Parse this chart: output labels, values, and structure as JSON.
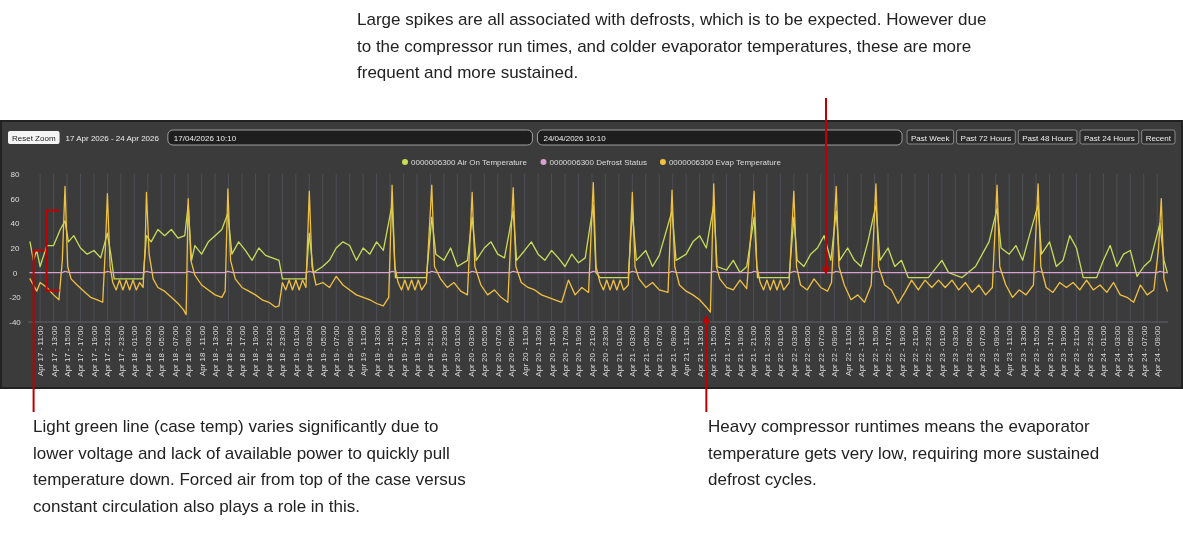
{
  "chart_data": {
    "type": "line",
    "legend": "top",
    "grid": "x",
    "annotations": [
      "Large spikes are all associated with defrosts, which is to be expected. However due to the compressor run times, and colder evaporator temperatures, these are more frequent and more sustained.",
      {
        "text": "Light green line (case temp) varies significantly due to lower voltage and lack of available power to quickly pull temperature down. Forced air from top of the case versus constant circulation also plays a role in this.",
        "x": "2026-04-17T11:40",
        "y": 18
      },
      "Heavy compressor runtimes means the evaporator temperature gets very low, requiring more sustained defrost cycles.",
      "Reset Zoom",
      "17 Apr 2026 - 24 Apr 2026",
      "17/04/2026 10:10",
      "24/04/2026 10:10",
      "Past Week",
      "Past 72 Hours",
      "Past 48 Hours",
      "Past 24 Hours",
      "Recent"
    ],
    "xlim": [
      "2026-04-17T09:12",
      "2026-04-24T10:36"
    ],
    "ylim": [
      -40,
      80
    ],
    "yticks": [
      -40,
      -20,
      0,
      20,
      40,
      60,
      80
    ],
    "xticks": [
      {
        "value": "2026-04-17T11:00",
        "label": "Apr 17 - 11:00"
      },
      {
        "value": "2026-04-17T13:00",
        "label": "Apr 17 - 13:00"
      },
      {
        "value": "2026-04-17T15:00",
        "label": "Apr 17 - 15:00"
      },
      {
        "value": "2026-04-17T17:00",
        "label": "Apr 17 - 17:00"
      },
      {
        "value": "2026-04-17T19:00",
        "label": "Apr 17 - 19:00"
      },
      {
        "value": "2026-04-17T21:00",
        "label": "Apr 17 - 21:00"
      },
      {
        "value": "2026-04-17T23:00",
        "label": "Apr 17 - 23:00"
      },
      {
        "value": "2026-04-18T01:00",
        "label": "Apr 18 - 01:00"
      },
      {
        "value": "2026-04-18T03:00",
        "label": "Apr 18 - 03:00"
      },
      {
        "value": "2026-04-18T05:00",
        "label": "Apr 18 - 05:00"
      },
      {
        "value": "2026-04-18T07:00",
        "label": "Apr 18 - 07:00"
      },
      {
        "value": "2026-04-18T09:00",
        "label": "Apr 18 - 09:00"
      },
      {
        "value": "2026-04-18T11:00",
        "label": "Apr 18 - 11:00"
      },
      {
        "value": "2026-04-18T13:00",
        "label": "Apr 18 - 13:00"
      },
      {
        "value": "2026-04-18T15:00",
        "label": "Apr 18 - 15:00"
      },
      {
        "value": "2026-04-18T17:00",
        "label": "Apr 18 - 17:00"
      },
      {
        "value": "2026-04-18T19:00",
        "label": "Apr 18 - 19:00"
      },
      {
        "value": "2026-04-18T21:00",
        "label": "Apr 18 - 21:00"
      },
      {
        "value": "2026-04-18T23:00",
        "label": "Apr 18 - 23:00"
      },
      {
        "value": "2026-04-19T01:00",
        "label": "Apr 19 - 01:00"
      },
      {
        "value": "2026-04-19T03:00",
        "label": "Apr 19 - 03:00"
      },
      {
        "value": "2026-04-19T05:00",
        "label": "Apr 19 - 05:00"
      },
      {
        "value": "2026-04-19T07:00",
        "label": "Apr 19 - 07:00"
      },
      {
        "value": "2026-04-19T09:00",
        "label": "Apr 19 - 09:00"
      },
      {
        "value": "2026-04-19T11:00",
        "label": "Apr 19 - 11:00"
      },
      {
        "value": "2026-04-19T13:00",
        "label": "Apr 19 - 13:00"
      },
      {
        "value": "2026-04-19T15:00",
        "label": "Apr 19 - 15:00"
      },
      {
        "value": "2026-04-19T17:00",
        "label": "Apr 19 - 17:00"
      },
      {
        "value": "2026-04-19T19:00",
        "label": "Apr 19 - 19:00"
      },
      {
        "value": "2026-04-19T21:00",
        "label": "Apr 19 - 21:00"
      },
      {
        "value": "2026-04-19T23:00",
        "label": "Apr 19 - 23:00"
      },
      {
        "value": "2026-04-20T01:00",
        "label": "Apr 20 - 01:00"
      },
      {
        "value": "2026-04-20T03:00",
        "label": "Apr 20 - 03:00"
      },
      {
        "value": "2026-04-20T05:00",
        "label": "Apr 20 - 05:00"
      },
      {
        "value": "2026-04-20T07:00",
        "label": "Apr 20 - 07:00"
      },
      {
        "value": "2026-04-20T09:00",
        "label": "Apr 20 - 09:00"
      },
      {
        "value": "2026-04-20T11:00",
        "label": "Apr 20 - 11:00"
      },
      {
        "value": "2026-04-20T13:00",
        "label": "Apr 20 - 13:00"
      },
      {
        "value": "2026-04-20T15:00",
        "label": "Apr 20 - 15:00"
      },
      {
        "value": "2026-04-20T17:00",
        "label": "Apr 20 - 17:00"
      },
      {
        "value": "2026-04-20T19:00",
        "label": "Apr 20 - 19:00"
      },
      {
        "value": "2026-04-20T21:00",
        "label": "Apr 20 - 21:00"
      },
      {
        "value": "2026-04-20T23:00",
        "label": "Apr 20 - 23:00"
      },
      {
        "value": "2026-04-21T01:00",
        "label": "Apr 21 - 01:00"
      },
      {
        "value": "2026-04-21T03:00",
        "label": "Apr 21 - 03:00"
      },
      {
        "value": "2026-04-21T05:00",
        "label": "Apr 21 - 05:00"
      },
      {
        "value": "2026-04-21T07:00",
        "label": "Apr 21 - 07:00"
      },
      {
        "value": "2026-04-21T09:00",
        "label": "Apr 21 - 09:00"
      },
      {
        "value": "2026-04-21T11:00",
        "label": "Apr 21 - 11:00"
      },
      {
        "value": "2026-04-21T13:00",
        "label": "Apr 21 - 13:00"
      },
      {
        "value": "2026-04-21T15:00",
        "label": "Apr 21 - 15:00"
      },
      {
        "value": "2026-04-21T17:00",
        "label": "Apr 21 - 17:00"
      },
      {
        "value": "2026-04-21T19:00",
        "label": "Apr 21 - 19:00"
      },
      {
        "value": "2026-04-21T21:00",
        "label": "Apr 21 - 21:00"
      },
      {
        "value": "2026-04-21T23:00",
        "label": "Apr 21 - 23:00"
      },
      {
        "value": "2026-04-22T01:00",
        "label": "Apr 22 - 01:00"
      },
      {
        "value": "2026-04-22T03:00",
        "label": "Apr 22 - 03:00"
      },
      {
        "value": "2026-04-22T05:00",
        "label": "Apr 22 - 05:00"
      },
      {
        "value": "2026-04-22T07:00",
        "label": "Apr 22 - 07:00"
      },
      {
        "value": "2026-04-22T09:00",
        "label": "Apr 22 - 09:00"
      },
      {
        "value": "2026-04-22T11:00",
        "label": "Apr 22 - 11:00"
      },
      {
        "value": "2026-04-22T13:00",
        "label": "Apr 22 - 13:00"
      },
      {
        "value": "2026-04-22T15:00",
        "label": "Apr 22 - 15:00"
      },
      {
        "value": "2026-04-22T17:00",
        "label": "Apr 22 - 17:00"
      },
      {
        "value": "2026-04-22T19:00",
        "label": "Apr 22 - 19:00"
      },
      {
        "value": "2026-04-22T21:00",
        "label": "Apr 22 - 21:00"
      },
      {
        "value": "2026-04-22T23:00",
        "label": "Apr 22 - 23:00"
      },
      {
        "value": "2026-04-23T01:00",
        "label": "Apr 23 - 01:00"
      },
      {
        "value": "2026-04-23T03:00",
        "label": "Apr 23 - 03:00"
      },
      {
        "value": "2026-04-23T05:00",
        "label": "Apr 23 - 05:00"
      },
      {
        "value": "2026-04-23T07:00",
        "label": "Apr 23 - 07:00"
      },
      {
        "value": "2026-04-23T09:00",
        "label": "Apr 23 - 09:00"
      },
      {
        "value": "2026-04-23T11:00",
        "label": "Apr 23 - 11:00"
      },
      {
        "value": "2026-04-23T13:00",
        "label": "Apr 23 - 13:00"
      },
      {
        "value": "2026-04-23T15:00",
        "label": "Apr 23 - 15:00"
      },
      {
        "value": "2026-04-23T17:00",
        "label": "Apr 23 - 17:00"
      },
      {
        "value": "2026-04-23T19:00",
        "label": "Apr 23 - 19:00"
      },
      {
        "value": "2026-04-23T21:00",
        "label": "Apr 23 - 21:00"
      },
      {
        "value": "2026-04-23T23:00",
        "label": "Apr 23 - 23:00"
      },
      {
        "value": "2026-04-24T01:00",
        "label": "Apr 24 - 01:00"
      },
      {
        "value": "2026-04-24T03:00",
        "label": "Apr 24 - 03:00"
      },
      {
        "value": "2026-04-24T05:00",
        "label": "Apr 24 - 05:00"
      },
      {
        "value": "2026-04-24T07:00",
        "label": "Apr 24 - 07:00"
      },
      {
        "value": "2026-04-24T09:00",
        "label": "Apr 24 - 09:00"
      }
    ],
    "series": [
      {
        "name": "0000006300 Air On Temperature",
        "color": "#c8dc5a",
        "x": [
          "2026-04-17T09:30",
          "2026-04-17T10:00",
          "2026-04-17T10:30",
          "2026-04-17T11:00",
          "2026-04-17T12:00",
          "2026-04-17T13:00",
          "2026-04-17T14:00",
          "2026-04-17T14:42",
          "2026-04-17T15:12",
          "2026-04-17T16:00",
          "2026-04-17T17:00",
          "2026-04-17T18:00",
          "2026-04-17T19:00",
          "2026-04-17T20:00",
          "2026-04-17T21:00",
          "2026-04-17T21:30",
          "2026-04-17T22:00",
          "2026-04-18T02:18",
          "2026-04-18T02:48",
          "2026-04-18T03:30",
          "2026-04-18T04:30",
          "2026-04-18T05:30",
          "2026-04-18T06:30",
          "2026-04-18T07:30",
          "2026-04-18T08:30",
          "2026-04-18T09:00",
          "2026-04-18T09:30",
          "2026-04-18T10:00",
          "2026-04-18T11:00",
          "2026-04-18T12:00",
          "2026-04-18T13:00",
          "2026-04-18T14:00",
          "2026-04-18T14:54",
          "2026-04-18T15:30",
          "2026-04-18T16:30",
          "2026-04-18T17:30",
          "2026-04-18T18:30",
          "2026-04-18T19:30",
          "2026-04-18T20:30",
          "2026-04-18T21:30",
          "2026-04-18T22:30",
          "2026-04-18T23:00",
          "2026-04-19T02:30",
          "2026-04-19T03:00",
          "2026-04-19T03:36",
          "2026-04-19T05:00",
          "2026-04-19T06:00",
          "2026-04-19T07:00",
          "2026-04-19T08:00",
          "2026-04-19T09:00",
          "2026-04-19T10:00",
          "2026-04-19T11:00",
          "2026-04-19T12:00",
          "2026-04-19T13:00",
          "2026-04-19T14:00",
          "2026-04-19T15:18",
          "2026-04-19T15:48",
          "2026-04-19T20:24",
          "2026-04-19T21:12",
          "2026-04-19T21:48",
          "2026-04-19T23:00",
          "2026-04-20T00:00",
          "2026-04-20T01:00",
          "2026-04-20T02:30",
          "2026-04-20T03:12",
          "2026-04-20T03:48",
          "2026-04-20T05:00",
          "2026-04-20T06:00",
          "2026-04-20T07:00",
          "2026-04-20T08:00",
          "2026-04-20T09:18",
          "2026-04-20T09:48",
          "2026-04-20T11:00",
          "2026-04-20T12:00",
          "2026-04-20T13:00",
          "2026-04-20T14:00",
          "2026-04-20T15:00",
          "2026-04-20T16:00",
          "2026-04-20T17:00",
          "2026-04-20T18:00",
          "2026-04-20T19:00",
          "2026-04-20T20:00",
          "2026-04-20T21:12",
          "2026-04-20T21:36",
          "2026-04-20T22:12",
          "2026-04-21T02:24",
          "2026-04-21T03:00",
          "2026-04-21T03:36",
          "2026-04-21T05:00",
          "2026-04-21T06:00",
          "2026-04-21T07:00",
          "2026-04-21T08:54",
          "2026-04-21T09:30",
          "2026-04-21T11:00",
          "2026-04-21T12:00",
          "2026-04-21T13:00",
          "2026-04-21T14:00",
          "2026-04-21T15:06",
          "2026-04-21T15:36",
          "2026-04-21T17:00",
          "2026-04-21T18:00",
          "2026-04-21T19:00",
          "2026-04-21T20:00",
          "2026-04-21T21:06",
          "2026-04-21T21:36",
          "2026-04-22T02:18",
          "2026-04-22T03:00",
          "2026-04-22T03:30",
          "2026-04-22T04:30",
          "2026-04-22T05:30",
          "2026-04-22T06:30",
          "2026-04-22T07:30",
          "2026-04-22T08:30",
          "2026-04-22T09:18",
          "2026-04-22T09:48",
          "2026-04-22T11:00",
          "2026-04-22T12:00",
          "2026-04-22T13:00",
          "2026-04-22T14:00",
          "2026-04-22T15:12",
          "2026-04-22T15:48",
          "2026-04-22T17:00",
          "2026-04-22T18:00",
          "2026-04-22T19:00",
          "2026-04-22T20:00",
          "2026-04-22T21:00",
          "2026-04-22T23:00",
          "2026-04-23T01:00",
          "2026-04-23T02:00",
          "2026-04-23T04:00",
          "2026-04-23T06:00",
          "2026-04-23T08:00",
          "2026-04-23T09:12",
          "2026-04-23T09:48",
          "2026-04-23T11:00",
          "2026-04-23T12:00",
          "2026-04-23T13:00",
          "2026-04-23T14:00",
          "2026-04-23T15:18",
          "2026-04-23T15:48",
          "2026-04-23T17:00",
          "2026-04-23T18:00",
          "2026-04-23T19:00",
          "2026-04-23T20:00",
          "2026-04-23T21:00",
          "2026-04-23T22:00",
          "2026-04-24T00:00",
          "2026-04-24T01:00",
          "2026-04-24T02:00",
          "2026-04-24T03:00",
          "2026-04-24T04:00",
          "2026-04-24T05:00",
          "2026-04-24T06:00",
          "2026-04-24T07:00",
          "2026-04-24T08:00",
          "2026-04-24T09:24",
          "2026-04-24T10:00",
          "2026-04-24T10:30"
        ],
        "values": [
          25,
          10,
          18,
          5,
          22,
          22,
          35,
          42,
          25,
          30,
          20,
          15,
          18,
          12,
          32,
          15,
          -5,
          -5,
          30,
          25,
          35,
          30,
          35,
          28,
          30,
          55,
          10,
          22,
          15,
          25,
          30,
          35,
          48,
          15,
          25,
          18,
          10,
          20,
          14,
          12,
          10,
          -5,
          -5,
          32,
          0,
          5,
          10,
          20,
          25,
          22,
          10,
          20,
          15,
          25,
          18,
          55,
          -4,
          -4,
          45,
          15,
          10,
          20,
          5,
          10,
          45,
          10,
          20,
          25,
          15,
          12,
          50,
          10,
          18,
          25,
          15,
          10,
          18,
          12,
          5,
          15,
          8,
          12,
          55,
          0,
          -4,
          -4,
          50,
          10,
          18,
          5,
          14,
          50,
          10,
          15,
          25,
          30,
          20,
          55,
          5,
          2,
          10,
          0,
          5,
          45,
          -4,
          -4,
          45,
          10,
          5,
          15,
          20,
          30,
          10,
          50,
          10,
          20,
          10,
          5,
          25,
          55,
          10,
          20,
          5,
          10,
          -4,
          -4,
          -4,
          10,
          0,
          -4,
          5,
          25,
          52,
          20,
          15,
          22,
          10,
          30,
          55,
          15,
          25,
          5,
          10,
          30,
          20,
          -4,
          -4,
          10,
          22,
          5,
          15,
          18,
          -3,
          5,
          10,
          40,
          10,
          0
        ]
      },
      {
        "name": "0000006300 Defrost Status",
        "color": "#d8a0d0",
        "x": [
          "2026-04-17T09:30",
          "2026-04-17T14:18",
          "2026-04-17T14:42",
          "2026-04-17T15:24",
          "2026-04-17T20:36",
          "2026-04-17T21:00",
          "2026-04-17T21:42",
          "2026-04-18T02:24",
          "2026-04-18T02:48",
          "2026-04-18T03:30",
          "2026-04-18T08:36",
          "2026-04-18T09:00",
          "2026-04-18T09:42",
          "2026-04-18T14:30",
          "2026-04-18T14:54",
          "2026-04-18T15:36",
          "2026-04-19T02:36",
          "2026-04-19T03:00",
          "2026-04-19T03:42",
          "2026-04-19T14:54",
          "2026-04-19T15:18",
          "2026-04-19T16:00",
          "2026-04-19T20:48",
          "2026-04-19T21:12",
          "2026-04-19T21:54",
          "2026-04-20T02:48",
          "2026-04-20T03:12",
          "2026-04-20T03:54",
          "2026-04-20T08:54",
          "2026-04-20T09:18",
          "2026-04-20T10:00",
          "2026-04-20T20:48",
          "2026-04-20T21:12",
          "2026-04-20T21:54",
          "2026-04-21T02:36",
          "2026-04-21T03:00",
          "2026-04-21T03:42",
          "2026-04-21T08:30",
          "2026-04-21T08:54",
          "2026-04-21T09:36",
          "2026-04-21T14:42",
          "2026-04-21T15:06",
          "2026-04-21T15:48",
          "2026-04-21T20:42",
          "2026-04-21T21:06",
          "2026-04-21T21:48",
          "2026-04-22T02:36",
          "2026-04-22T03:00",
          "2026-04-22T03:42",
          "2026-04-22T08:54",
          "2026-04-22T09:18",
          "2026-04-22T10:00",
          "2026-04-22T14:48",
          "2026-04-22T15:12",
          "2026-04-22T15:54",
          "2026-04-23T08:48",
          "2026-04-23T09:12",
          "2026-04-23T09:54",
          "2026-04-23T14:54",
          "2026-04-23T15:18",
          "2026-04-23T16:00",
          "2026-04-24T09:00",
          "2026-04-24T09:24",
          "2026-04-24T10:06",
          "2026-04-24T10:30"
        ],
        "values": [
          0,
          0,
          1,
          0,
          0,
          1,
          0,
          0,
          1,
          0,
          0,
          1,
          0,
          0,
          1,
          0,
          0,
          1,
          0,
          0,
          1,
          0,
          0,
          1,
          0,
          0,
          1,
          0,
          0,
          1,
          0,
          0,
          1,
          0,
          0,
          1,
          0,
          0,
          1,
          0,
          0,
          1,
          0,
          0,
          1,
          0,
          0,
          1,
          0,
          0,
          1,
          0,
          0,
          1,
          0,
          0,
          1,
          0,
          0,
          1,
          0,
          0,
          1,
          0,
          0
        ]
      },
      {
        "name": "0000006300 Evap Temperature",
        "color": "#f0c040",
        "x": [
          "2026-04-17T09:30",
          "2026-04-17T10:00",
          "2026-04-17T10:30",
          "2026-04-17T11:00",
          "2026-04-17T12:00",
          "2026-04-17T13:00",
          "2026-04-17T13:48",
          "2026-04-17T14:18",
          "2026-04-17T14:42",
          "2026-04-17T15:06",
          "2026-04-17T15:36",
          "2026-04-17T16:30",
          "2026-04-17T17:30",
          "2026-04-17T18:30",
          "2026-04-17T19:30",
          "2026-04-17T20:18",
          "2026-04-17T20:42",
          "2026-04-17T21:00",
          "2026-04-17T21:24",
          "2026-04-17T21:48",
          "2026-04-17T22:18",
          "2026-04-17T22:48",
          "2026-04-17T23:18",
          "2026-04-17T23:48",
          "2026-04-18T00:18",
          "2026-04-18T00:48",
          "2026-04-18T01:18",
          "2026-04-18T01:48",
          "2026-04-18T02:18",
          "2026-04-18T02:36",
          "2026-04-18T02:48",
          "2026-04-18T03:12",
          "2026-04-18T03:48",
          "2026-04-18T04:30",
          "2026-04-18T05:30",
          "2026-04-18T06:30",
          "2026-04-18T07:30",
          "2026-04-18T08:18",
          "2026-04-18T08:42",
          "2026-04-18T09:00",
          "2026-04-18T09:24",
          "2026-04-18T10:00",
          "2026-04-18T11:00",
          "2026-04-18T12:00",
          "2026-04-18T13:00",
          "2026-04-18T14:00",
          "2026-04-18T14:30",
          "2026-04-18T14:54",
          "2026-04-18T15:18",
          "2026-04-18T16:00",
          "2026-04-18T17:00",
          "2026-04-18T18:00",
          "2026-04-18T19:00",
          "2026-04-18T20:00",
          "2026-04-18T21:00",
          "2026-04-18T22:00",
          "2026-04-18T22:30",
          "2026-04-18T23:00",
          "2026-04-18T23:30",
          "2026-04-19T00:00",
          "2026-04-19T00:30",
          "2026-04-19T01:00",
          "2026-04-19T01:30",
          "2026-04-19T02:00",
          "2026-04-19T02:30",
          "2026-04-19T03:00",
          "2026-04-19T03:24",
          "2026-04-19T04:00",
          "2026-04-19T05:00",
          "2026-04-19T06:00",
          "2026-04-19T07:00",
          "2026-04-19T08:00",
          "2026-04-19T09:00",
          "2026-04-19T10:00",
          "2026-04-19T11:00",
          "2026-04-19T12:00",
          "2026-04-19T13:00",
          "2026-04-19T14:00",
          "2026-04-19T14:48",
          "2026-04-19T15:18",
          "2026-04-19T15:42",
          "2026-04-19T16:12",
          "2026-04-19T16:42",
          "2026-04-19T17:12",
          "2026-04-19T17:42",
          "2026-04-19T18:12",
          "2026-04-19T18:42",
          "2026-04-19T19:12",
          "2026-04-19T19:42",
          "2026-04-19T20:24",
          "2026-04-19T21:12",
          "2026-04-19T21:36",
          "2026-04-19T22:30",
          "2026-04-19T23:30",
          "2026-04-20T00:30",
          "2026-04-20T01:30",
          "2026-04-20T02:30",
          "2026-04-20T03:12",
          "2026-04-20T03:36",
          "2026-04-20T04:30",
          "2026-04-20T05:30",
          "2026-04-20T06:30",
          "2026-04-20T07:30",
          "2026-04-20T08:30",
          "2026-04-20T09:18",
          "2026-04-20T09:42",
          "2026-04-20T10:30",
          "2026-04-20T11:30",
          "2026-04-20T12:30",
          "2026-04-20T13:30",
          "2026-04-20T14:30",
          "2026-04-20T15:30",
          "2026-04-20T16:30",
          "2026-04-20T17:30",
          "2026-04-20T18:30",
          "2026-04-20T19:30",
          "2026-04-20T20:30",
          "2026-04-20T21:12",
          "2026-04-20T21:36",
          "2026-04-20T22:12",
          "2026-04-20T22:42",
          "2026-04-20T23:12",
          "2026-04-20T23:42",
          "2026-04-21T00:12",
          "2026-04-21T00:42",
          "2026-04-21T01:12",
          "2026-04-21T01:42",
          "2026-04-21T02:24",
          "2026-04-21T03:00",
          "2026-04-21T03:24",
          "2026-04-21T04:00",
          "2026-04-21T05:00",
          "2026-04-21T06:00",
          "2026-04-21T07:00",
          "2026-04-21T08:18",
          "2026-04-21T08:54",
          "2026-04-21T09:18",
          "2026-04-21T10:00",
          "2026-04-21T11:00",
          "2026-04-21T12:00",
          "2026-04-21T13:00",
          "2026-04-21T14:00",
          "2026-04-21T14:36",
          "2026-04-21T15:06",
          "2026-04-21T15:30",
          "2026-04-21T16:00",
          "2026-04-21T17:00",
          "2026-04-21T18:00",
          "2026-04-21T19:00",
          "2026-04-21T20:00",
          "2026-04-21T21:06",
          "2026-04-21T21:30",
          "2026-04-21T22:00",
          "2026-04-21T22:30",
          "2026-04-21T23:00",
          "2026-04-21T23:30",
          "2026-04-22T00:00",
          "2026-04-22T00:30",
          "2026-04-22T01:00",
          "2026-04-22T01:30",
          "2026-04-22T02:18",
          "2026-04-22T03:00",
          "2026-04-22T03:24",
          "2026-04-22T04:00",
          "2026-04-22T05:00",
          "2026-04-22T06:00",
          "2026-04-22T07:00",
          "2026-04-22T08:00",
          "2026-04-22T08:36",
          "2026-04-22T09:18",
          "2026-04-22T09:42",
          "2026-04-22T10:30",
          "2026-04-22T11:30",
          "2026-04-22T12:30",
          "2026-04-22T13:30",
          "2026-04-22T14:30",
          "2026-04-22T15:12",
          "2026-04-22T15:36",
          "2026-04-22T16:30",
          "2026-04-22T17:30",
          "2026-04-22T18:30",
          "2026-04-22T19:30",
          "2026-04-22T20:30",
          "2026-04-22T21:30",
          "2026-04-22T22:30",
          "2026-04-22T23:30",
          "2026-04-23T00:30",
          "2026-04-23T01:30",
          "2026-04-23T02:30",
          "2026-04-23T03:30",
          "2026-04-23T04:30",
          "2026-04-23T05:30",
          "2026-04-23T06:30",
          "2026-04-23T07:30",
          "2026-04-23T08:30",
          "2026-04-23T09:12",
          "2026-04-23T09:36",
          "2026-04-23T10:30",
          "2026-04-23T11:30",
          "2026-04-23T12:30",
          "2026-04-23T13:30",
          "2026-04-23T14:36",
          "2026-04-23T15:18",
          "2026-04-23T15:42",
          "2026-04-23T16:30",
          "2026-04-23T17:30",
          "2026-04-23T18:30",
          "2026-04-23T19:30",
          "2026-04-23T20:30",
          "2026-04-23T21:30",
          "2026-04-23T22:30",
          "2026-04-23T23:30",
          "2026-04-24T00:30",
          "2026-04-24T01:30",
          "2026-04-24T02:30",
          "2026-04-24T03:30",
          "2026-04-24T04:30",
          "2026-04-24T05:30",
          "2026-04-24T06:30",
          "2026-04-24T07:30",
          "2026-04-24T08:30",
          "2026-04-24T09:12",
          "2026-04-24T09:36",
          "2026-04-24T10:00",
          "2026-04-24T10:30"
        ],
        "values": [
          -5,
          -10,
          -15,
          -8,
          -12,
          -18,
          -22,
          10,
          70,
          5,
          -5,
          -10,
          -15,
          -20,
          -22,
          -24,
          20,
          64,
          5,
          -8,
          -14,
          -6,
          -14,
          -6,
          -14,
          -6,
          -14,
          -8,
          -12,
          20,
          65,
          15,
          -5,
          -12,
          -15,
          -20,
          -25,
          -30,
          -34,
          60,
          10,
          -2,
          -10,
          -14,
          -18,
          -20,
          -15,
          68,
          10,
          -5,
          -12,
          -15,
          -18,
          -22,
          -24,
          -28,
          -27,
          -8,
          -14,
          -6,
          -14,
          -6,
          -14,
          -6,
          -12,
          66,
          5,
          -10,
          -8,
          -12,
          -3,
          -10,
          -14,
          -18,
          -20,
          -22,
          -25,
          -27,
          -20,
          71,
          5,
          -8,
          -14,
          -6,
          -14,
          -6,
          -14,
          -6,
          -14,
          -8,
          71,
          5,
          -5,
          -12,
          -8,
          -15,
          -18,
          65,
          5,
          -10,
          -18,
          -14,
          -20,
          -24,
          69,
          5,
          -8,
          -12,
          -14,
          -18,
          -20,
          -22,
          -24,
          -6,
          -18,
          -12,
          -16,
          73,
          5,
          -8,
          -14,
          -6,
          -14,
          -6,
          -14,
          -6,
          -14,
          -10,
          65,
          5,
          -5,
          -12,
          -8,
          -14,
          -16,
          67,
          5,
          -10,
          -15,
          -18,
          -22,
          -28,
          -32,
          72,
          5,
          -5,
          -12,
          -14,
          -6,
          -13,
          66,
          5,
          -8,
          -14,
          -6,
          -14,
          -6,
          -14,
          -6,
          -14,
          -8,
          66,
          5,
          -10,
          -14,
          -5,
          -12,
          -15,
          -8,
          70,
          5,
          -10,
          -22,
          -18,
          -24,
          -10,
          72,
          5,
          -10,
          -14,
          -25,
          -16,
          -6,
          -14,
          -6,
          -12,
          -6,
          -12,
          -6,
          -14,
          -8,
          -16,
          -10,
          -18,
          -12,
          71,
          5,
          -10,
          -20,
          -14,
          -18,
          -10,
          72,
          5,
          -12,
          -16,
          -8,
          -12,
          -8,
          -14,
          -6,
          -14,
          -10,
          -16,
          -8,
          -18,
          -20,
          -24,
          -10,
          -18,
          -14,
          20,
          60,
          -5,
          -15
        ]
      }
    ]
  }
}
